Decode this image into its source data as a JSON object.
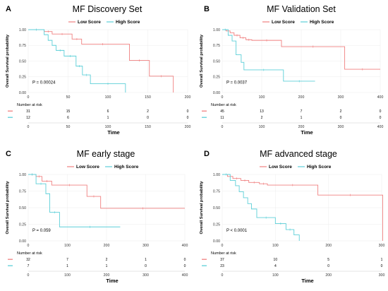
{
  "colors": {
    "low": "#f08080",
    "high": "#5ccfd8"
  },
  "chart_data": [
    {
      "type": "line",
      "panel": "A",
      "title": "MF Discovery Set",
      "xlabel": "Time",
      "ylabel": "Overall Survival probability",
      "xlim": [
        0,
        200
      ],
      "ylim": [
        0,
        1
      ],
      "xticks": [
        0,
        50,
        100,
        150,
        200
      ],
      "yticks": [
        "0.00",
        "0.25",
        "0.50",
        "0.75",
        "1.00"
      ],
      "legend": {
        "title": "",
        "entries": [
          "Low Score",
          "High Score"
        ]
      },
      "p_value": "P = 0.00024",
      "series": [
        {
          "name": "Low Score",
          "x": [
            0,
            20,
            30,
            55,
            67,
            120,
            127,
            152,
            182
          ],
          "y": [
            1.0,
            0.97,
            0.93,
            0.85,
            0.77,
            0.77,
            0.51,
            0.26,
            0.0
          ]
        },
        {
          "name": "High Score",
          "x": [
            0,
            20,
            25,
            30,
            35,
            45,
            60,
            68,
            78,
            122
          ],
          "y": [
            1.0,
            0.92,
            0.83,
            0.75,
            0.67,
            0.58,
            0.42,
            0.28,
            0.14,
            0.0
          ]
        }
      ],
      "risk_table": {
        "title": "Number at risk",
        "times": [
          0,
          50,
          100,
          150,
          200
        ],
        "rows": [
          {
            "name": "Low Score",
            "values": [
              "31",
              "15",
              "6",
              "2",
              "0"
            ]
          },
          {
            "name": "High Score",
            "values": [
              "12",
              "6",
              "1",
              "0",
              "0"
            ]
          }
        ]
      }
    },
    {
      "type": "line",
      "panel": "B",
      "title": "MF Validation Set",
      "xlabel": "Time",
      "ylabel": "Overall Survival probability",
      "xlim": [
        0,
        400
      ],
      "ylim": [
        0,
        1
      ],
      "xticks": [
        0,
        100,
        200,
        300,
        400
      ],
      "yticks": [
        "0.00",
        "0.25",
        "0.50",
        "0.75",
        "1.00"
      ],
      "legend": {
        "title": "",
        "entries": [
          "Low Score",
          "High Score"
        ]
      },
      "p_value": "P = 0.0037",
      "series": [
        {
          "name": "Low Score",
          "x": [
            0,
            10,
            20,
            30,
            45,
            60,
            75,
            150,
            310,
            400
          ],
          "y": [
            1.0,
            0.98,
            0.95,
            0.91,
            0.87,
            0.84,
            0.83,
            0.73,
            0.37,
            0.37
          ]
        },
        {
          "name": "High Score",
          "x": [
            0,
            15,
            25,
            35,
            48,
            55,
            155,
            235
          ],
          "y": [
            1.0,
            0.91,
            0.82,
            0.6,
            0.48,
            0.36,
            0.18,
            0.18
          ]
        }
      ],
      "risk_table": {
        "title": "Number at risk",
        "times": [
          0,
          100,
          200,
          300,
          400
        ],
        "rows": [
          {
            "name": "Low Score",
            "values": [
              "45",
              "13",
              "7",
              "2",
              "0"
            ]
          },
          {
            "name": "High Score",
            "values": [
              "11",
              "2",
              "1",
              "0",
              "0"
            ]
          }
        ]
      }
    },
    {
      "type": "line",
      "panel": "C",
      "title": "MF early stage",
      "xlabel": "Time",
      "ylabel": "Overall Survival probability",
      "xlim": [
        0,
        400
      ],
      "ylim": [
        0,
        1
      ],
      "xticks": [
        0,
        100,
        200,
        300,
        400
      ],
      "yticks": [
        "0.00",
        "0.25",
        "0.50",
        "0.75",
        "1.00"
      ],
      "legend": {
        "title": "",
        "entries": [
          "Low Score",
          "High Score"
        ]
      },
      "p_value": "P = 0.059",
      "series": [
        {
          "name": "Low Score",
          "x": [
            0,
            20,
            35,
            60,
            150,
            185,
            400
          ],
          "y": [
            1.0,
            0.97,
            0.9,
            0.84,
            0.67,
            0.49,
            0.49
          ]
        },
        {
          "name": "High Score",
          "x": [
            0,
            20,
            45,
            55,
            80,
            235
          ],
          "y": [
            1.0,
            0.86,
            0.71,
            0.43,
            0.21,
            0.21
          ]
        }
      ],
      "risk_table": {
        "title": "Number at risk",
        "times": [
          0,
          100,
          200,
          300,
          400
        ],
        "rows": [
          {
            "name": "Low Score",
            "values": [
              "32",
              "7",
              "2",
              "1",
              "0"
            ]
          },
          {
            "name": "High Score",
            "values": [
              "7",
              "1",
              "1",
              "0",
              "0"
            ]
          }
        ]
      }
    },
    {
      "type": "line",
      "panel": "D",
      "title": "MF advanced stage",
      "xlabel": "Time",
      "ylabel": "Overall Survival probability",
      "xlim": [
        0,
        300
      ],
      "ylim": [
        0,
        1
      ],
      "xticks": [
        0,
        100,
        200,
        300
      ],
      "yticks": [
        "0.00",
        "0.25",
        "0.50",
        "0.75",
        "1.00"
      ],
      "legend": {
        "title": "",
        "entries": [
          "Low Score",
          "High Score"
        ]
      },
      "p_value": "P < 0.0001",
      "series": [
        {
          "name": "Low Score",
          "x": [
            0,
            10,
            20,
            35,
            50,
            70,
            85,
            180,
            302
          ],
          "y": [
            1.0,
            0.97,
            0.94,
            0.91,
            0.88,
            0.86,
            0.84,
            0.69,
            0.0
          ]
        },
        {
          "name": "High Score",
          "x": [
            0,
            15,
            25,
            32,
            40,
            48,
            55,
            65,
            100,
            120,
            135,
            145
          ],
          "y": [
            1.0,
            0.91,
            0.83,
            0.74,
            0.65,
            0.56,
            0.48,
            0.35,
            0.26,
            0.17,
            0.09,
            0.0
          ]
        }
      ],
      "risk_table": {
        "title": "Number at risk",
        "times": [
          0,
          100,
          200,
          300
        ],
        "rows": [
          {
            "name": "Low Score",
            "values": [
              "37",
              "10",
              "5",
              "1"
            ]
          },
          {
            "name": "High Score",
            "values": [
              "23",
              "4",
              "0",
              "0"
            ]
          }
        ]
      }
    }
  ]
}
